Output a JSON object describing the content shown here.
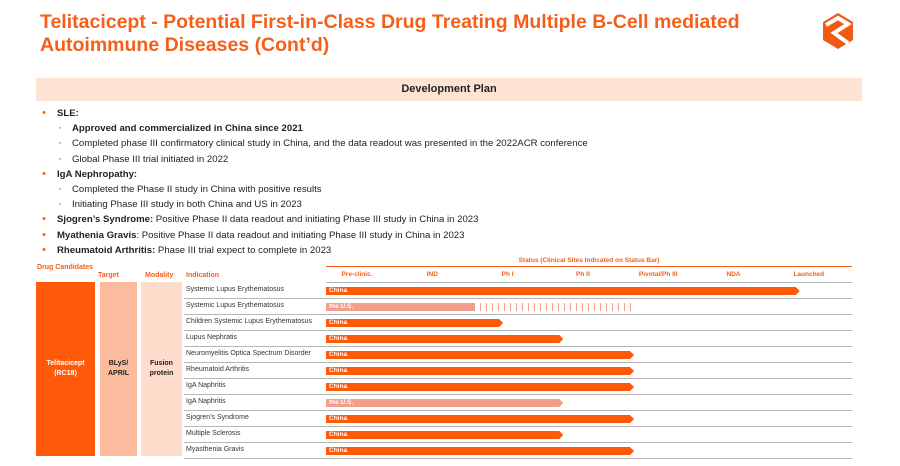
{
  "title": "Telitacicept - Potential First-in-Class Drug Treating Multiple B-Cell mediated Autoimmune Diseases (Cont’d)",
  "logo_icon": "company-logo",
  "colors": {
    "accent": "#ff5a0a",
    "us_bar": "#f19e8d",
    "target_cell": "#fbbb9c",
    "modality_cell": "#fddccb"
  },
  "section_header": "Development Plan",
  "bullets": [
    {
      "label": "SLE:",
      "text": "",
      "subs": [
        {
          "text": "Approved and commercialized in China since 2021",
          "bold": true
        },
        {
          "text": "Completed phase III confirmatory clinical study in China, and the data readout was presented in the 2022ACR conference"
        },
        {
          "text": "Global Phase III trial initiated in 2022"
        }
      ]
    },
    {
      "label": "IgA Nephropathy:",
      "text": "",
      "subs": [
        {
          "text": "Completed the Phase II study in China with positive results"
        },
        {
          "text": "Initiating Phase III study in both China and US in 2023"
        }
      ]
    },
    {
      "label": "Sjogren’s Syndrome:",
      "text": " Positive Phase II data readout and initiating Phase III study in China in 2023",
      "subs": []
    },
    {
      "label": "Myathenia Gravis",
      "text": ": Positive Phase II data readout and initiating Phase III study in China in 2023",
      "subs": []
    },
    {
      "label": "Rheumatoid Arthritis:",
      "text": " Phase III trial expect to complete in 2023",
      "subs": []
    }
  ],
  "table": {
    "headers": {
      "drug": "Drug Candidates",
      "target": "Target",
      "modality": "Modality",
      "indication": "Indication",
      "status": "Status (Clinical Sites Indicated on Status Bar)"
    },
    "stages": [
      "Pre-clinic.",
      "IND",
      "Ph I",
      "Ph II",
      "Pivotal/Ph III",
      "NDA",
      "Launched"
    ],
    "drug": "Telitacicept (RC18)",
    "target": "BLyS/ APRIL",
    "modality": "Fusion protein",
    "rows": [
      {
        "indication": "Systemic Lupus Erythematosus",
        "site": "China",
        "progress": 5.88
      },
      {
        "indication": "Systemic Lupus Erythematosus",
        "site": "the U.S.",
        "progress": 1.57,
        "planned": 3.63
      },
      {
        "indication": "Children Systemic Lupus Erythematosus",
        "site": "China",
        "progress": 1.94
      },
      {
        "indication": "Lupus Nephratis",
        "site": "China",
        "progress": 2.74
      },
      {
        "indication": "Neuromyelitis Optica Spectrum Disorder",
        "site": "China",
        "progress": 3.68
      },
      {
        "indication": "Rheumatoid Arthritis",
        "site": "China",
        "progress": 3.68
      },
      {
        "indication": "IgA Naphritis",
        "site": "China",
        "progress": 3.68
      },
      {
        "indication": "IgA Naphritis",
        "site": "the U.S.",
        "progress": 2.74
      },
      {
        "indication": "Sjogren’s Syndrome",
        "site": "China",
        "progress": 3.68
      },
      {
        "indication": "Multiple Sclerosis",
        "site": "China",
        "progress": 2.74
      },
      {
        "indication": "Myasthenia Gravis",
        "site": "China",
        "progress": 3.68
      }
    ]
  }
}
